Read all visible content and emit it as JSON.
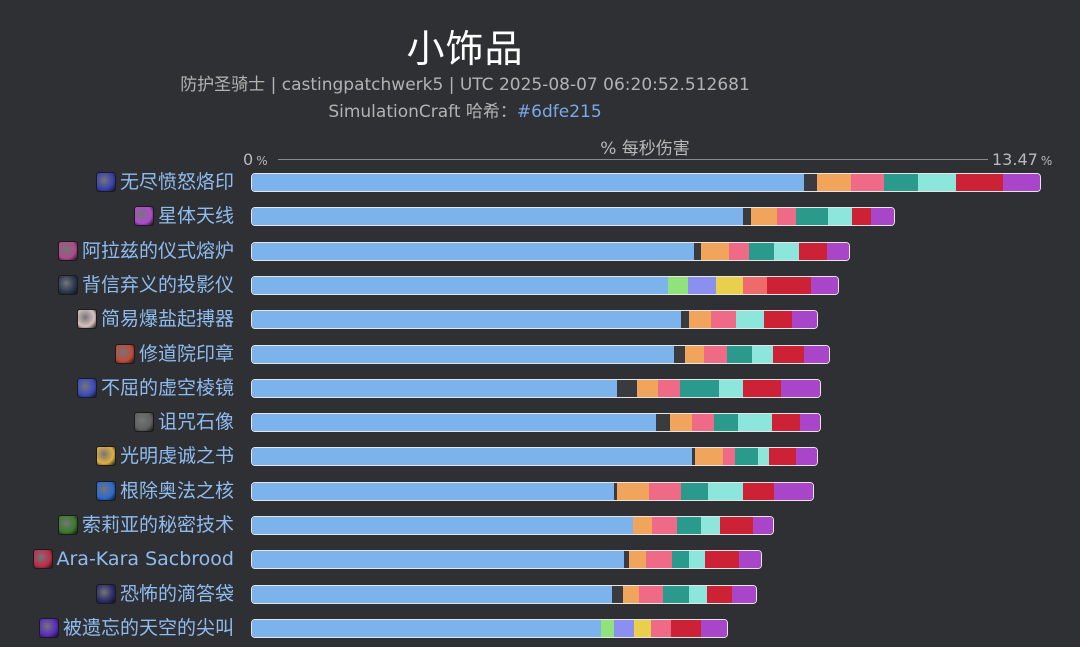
{
  "header": {
    "title": "小饰品",
    "subtitle": "防护圣骑士 | castingpatchwerk5 | UTC 2025-08-07 06:20:52.512681",
    "hash_prefix": "SimulationCraft 哈希：",
    "hash": "#6dfe215"
  },
  "axis": {
    "label": "% 每秒伤害",
    "min_label": "0",
    "max_label": "13.47",
    "unit": "%"
  },
  "colors": {
    "base": "#7db3ec",
    "dark": "#3a3b3e",
    "orange": "#f0a45c",
    "pink": "#ee6a86",
    "teal": "#2a9a8c",
    "aqua": "#8de6db",
    "red": "#cd2236",
    "purple": "#a845c8",
    "lime": "#8fe37a",
    "violet": "#8a8ff0",
    "yellow": "#e8cf4c",
    "salmon": "#ef6b6b"
  },
  "chart_data": {
    "type": "bar",
    "orientation": "horizontal",
    "stacked": true,
    "xlim": [
      0,
      13.47
    ],
    "categories": [
      "无尽愤怒烙印",
      "星体天线",
      "阿拉兹的仪式熔炉",
      "背信弃义的投影仪",
      "简易爆盐起搏器",
      "修道院印章",
      "不屈的虚空棱镜",
      "诅咒石像",
      "光明虔诚之书",
      "根除奥法之核",
      "索莉亚的秘密技术",
      "Ara-Kara Sacbrood",
      "恐怖的滴答袋",
      "被遗忘的天空的尖叫"
    ],
    "icons": [
      "brand-icon",
      "antenna-icon",
      "forge-icon",
      "projector-icon",
      "defibrillator-icon",
      "seal-icon",
      "prism-icon",
      "statue-icon",
      "book-icon",
      "core-icon",
      "tech-icon",
      "sacbrood-icon",
      "bag-icon",
      "shriek-icon"
    ],
    "icon_colors": [
      "#3a3fb0",
      "#b04ad0",
      "#b04a8a",
      "#2a3550",
      "#d8c0c0",
      "#c04a3a",
      "#3a4ac0",
      "#606060",
      "#e0b040",
      "#2a6ad0",
      "#3a7a2a",
      "#c02a4a",
      "#2a2a6a",
      "#5a2ac0"
    ],
    "rows": [
      [
        [
          "base",
          9.42
        ],
        [
          "dark",
          0.22
        ],
        [
          "orange",
          0.58
        ],
        [
          "pink",
          0.55
        ],
        [
          "teal",
          0.58
        ],
        [
          "aqua",
          0.65
        ],
        [
          "red",
          0.8
        ],
        [
          "purple",
          0.67
        ]
      ],
      [
        [
          "base",
          8.38
        ],
        [
          "dark",
          0.12
        ],
        [
          "orange",
          0.45
        ],
        [
          "pink",
          0.33
        ],
        [
          "teal",
          0.55
        ],
        [
          "aqua",
          0.4
        ],
        [
          "red",
          0.33
        ],
        [
          "purple",
          0.42
        ]
      ],
      [
        [
          "base",
          7.54
        ],
        [
          "dark",
          0.12
        ],
        [
          "orange",
          0.48
        ],
        [
          "pink",
          0.33
        ],
        [
          "teal",
          0.43
        ],
        [
          "aqua",
          0.43
        ],
        [
          "red",
          0.47
        ],
        [
          "purple",
          0.42
        ]
      ],
      [
        [
          "base",
          7.1
        ],
        [
          "lime",
          0.33
        ],
        [
          "violet",
          0.48
        ],
        [
          "yellow",
          0.47
        ],
        [
          "salmon",
          0.4
        ],
        [
          "red",
          0.75
        ],
        [
          "purple",
          0.5
        ]
      ],
      [
        [
          "base",
          7.32
        ],
        [
          "dark",
          0.13
        ],
        [
          "orange",
          0.38
        ],
        [
          "pink",
          0.43
        ],
        [
          "aqua",
          0.47
        ],
        [
          "red",
          0.47
        ],
        [
          "purple",
          0.47
        ]
      ],
      [
        [
          "base",
          7.2
        ],
        [
          "dark",
          0.18
        ],
        [
          "orange",
          0.32
        ],
        [
          "pink",
          0.4
        ],
        [
          "teal",
          0.42
        ],
        [
          "aqua",
          0.37
        ],
        [
          "red",
          0.53
        ],
        [
          "purple",
          0.45
        ]
      ],
      [
        [
          "base",
          6.22
        ],
        [
          "dark",
          0.35
        ],
        [
          "orange",
          0.35
        ],
        [
          "pink",
          0.38
        ],
        [
          "teal",
          0.67
        ],
        [
          "aqua",
          0.4
        ],
        [
          "red",
          0.65
        ],
        [
          "purple",
          0.7
        ]
      ],
      [
        [
          "base",
          6.88
        ],
        [
          "dark",
          0.25
        ],
        [
          "orange",
          0.37
        ],
        [
          "pink",
          0.38
        ],
        [
          "teal",
          0.4
        ],
        [
          "aqua",
          0.58
        ],
        [
          "red",
          0.48
        ],
        [
          "purple",
          0.38
        ]
      ],
      [
        [
          "base",
          7.5
        ],
        [
          "dark",
          0.05
        ],
        [
          "orange",
          0.48
        ],
        [
          "pink",
          0.2
        ],
        [
          "teal",
          0.4
        ],
        [
          "aqua",
          0.18
        ],
        [
          "red",
          0.47
        ],
        [
          "purple",
          0.38
        ]
      ],
      [
        [
          "base",
          6.17
        ],
        [
          "dark",
          0.05
        ],
        [
          "orange",
          0.55
        ],
        [
          "pink",
          0.55
        ],
        [
          "teal",
          0.45
        ],
        [
          "aqua",
          0.6
        ],
        [
          "red",
          0.53
        ],
        [
          "purple",
          0.7
        ]
      ],
      [
        [
          "base",
          6.5
        ],
        [
          "orange",
          0.32
        ],
        [
          "pink",
          0.42
        ],
        [
          "teal",
          0.42
        ],
        [
          "aqua",
          0.32
        ],
        [
          "red",
          0.57
        ],
        [
          "purple",
          0.37
        ]
      ],
      [
        [
          "base",
          6.35
        ],
        [
          "dark",
          0.08
        ],
        [
          "orange",
          0.28
        ],
        [
          "pink",
          0.45
        ],
        [
          "teal",
          0.3
        ],
        [
          "aqua",
          0.27
        ],
        [
          "red",
          0.57
        ],
        [
          "purple",
          0.42
        ]
      ],
      [
        [
          "base",
          6.13
        ],
        [
          "dark",
          0.2
        ],
        [
          "orange",
          0.27
        ],
        [
          "pink",
          0.4
        ],
        [
          "teal",
          0.45
        ],
        [
          "aqua",
          0.3
        ],
        [
          "red",
          0.43
        ],
        [
          "purple",
          0.45
        ]
      ],
      [
        [
          "base",
          5.95
        ],
        [
          "lime",
          0.23
        ],
        [
          "violet",
          0.33
        ],
        [
          "yellow",
          0.3
        ],
        [
          "pink",
          0.33
        ],
        [
          "red",
          0.52
        ],
        [
          "purple",
          0.47
        ]
      ]
    ]
  }
}
